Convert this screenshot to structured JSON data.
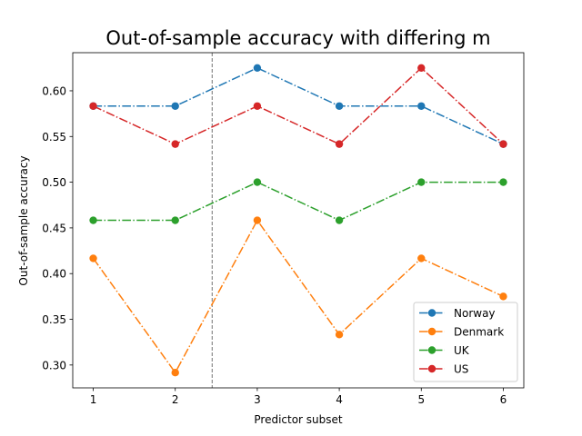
{
  "chart_data": {
    "type": "line",
    "title": "Out-of-sample accuracy with differing m",
    "xlabel": "Predictor subset",
    "ylabel": "Out-of-sample accuracy",
    "x": [
      1,
      2,
      3,
      4,
      5,
      6
    ],
    "xticks": [
      "1",
      "2",
      "3",
      "4",
      "5",
      "6"
    ],
    "yticks": [
      "0.30",
      "0.35",
      "0.40",
      "0.45",
      "0.50",
      "0.55",
      "0.60"
    ],
    "xlim": [
      0.75,
      6.25
    ],
    "ylim": [
      0.275,
      0.6417
    ],
    "reference_line": {
      "x": 2.45,
      "style": "dashed",
      "color": "#808080"
    },
    "grid": false,
    "legend_position": "lower-right",
    "series": [
      {
        "name": "Norway",
        "color": "#1f77b4",
        "values": [
          0.5833,
          0.5833,
          0.625,
          0.5833,
          0.5833,
          0.5417
        ]
      },
      {
        "name": "Denmark",
        "color": "#ff7f0e",
        "values": [
          0.4167,
          0.2917,
          0.4583,
          0.3333,
          0.4167,
          0.375
        ]
      },
      {
        "name": "UK",
        "color": "#2ca02c",
        "values": [
          0.4583,
          0.4583,
          0.5,
          0.4583,
          0.5,
          0.5
        ]
      },
      {
        "name": "US",
        "color": "#d62728",
        "values": [
          0.5833,
          0.5417,
          0.5833,
          0.5417,
          0.625,
          0.5417
        ]
      }
    ]
  }
}
